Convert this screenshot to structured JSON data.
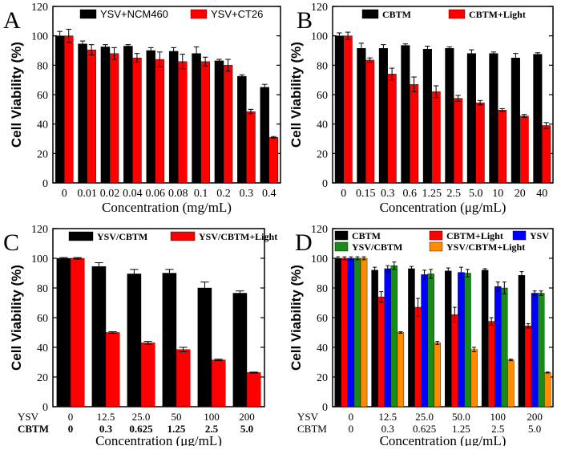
{
  "chart_data": [
    {
      "panel_letter": "A",
      "type": "bar",
      "categories": [
        "0",
        "0.01",
        "0.02",
        "0.04",
        "0.06",
        "0.08",
        "0.1",
        "0.2",
        "0.3",
        "0.4"
      ],
      "series": [
        {
          "name": "YSV+NCM460",
          "color": "#000000",
          "values": [
            100,
            94.5,
            92.5,
            93,
            90,
            89.5,
            88,
            83,
            72.5,
            65
          ],
          "errors": [
            3,
            2,
            1.5,
            1,
            2,
            2.5,
            4.5,
            1,
            1,
            2
          ]
        },
        {
          "name": "YSV+CT26",
          "color": "#ff0000",
          "values": [
            100,
            90.5,
            88,
            85,
            84,
            82.5,
            82.5,
            80,
            48.5,
            31
          ],
          "errors": [
            4.5,
            3.5,
            4,
            3,
            5,
            5,
            3,
            4,
            1.5,
            0.5
          ]
        }
      ],
      "xlabel": "Concentration (mg/mL)",
      "ylabel": "Cell Viability (%)",
      "ylim": [
        0,
        120
      ],
      "yticks": [
        "0",
        "20",
        "40",
        "60",
        "80",
        "100",
        "120"
      ],
      "legend": "top"
    },
    {
      "panel_letter": "B",
      "type": "bar",
      "categories": [
        "0",
        "0.15",
        "0.3",
        "0.6",
        "1.25",
        "2.5",
        "5.0",
        "10",
        "20",
        "40"
      ],
      "series": [
        {
          "name": "CBTM",
          "color": "#000000",
          "values": [
            100,
            91.5,
            91.5,
            93.5,
            91,
            91.5,
            88,
            88,
            85,
            87.5
          ],
          "errors": [
            2,
            3.5,
            2.5,
            1,
            2,
            1,
            2.5,
            1,
            3,
            1
          ]
        },
        {
          "name": "CBTM+Light",
          "color": "#ff0000",
          "values": [
            100,
            83.5,
            74,
            67,
            62,
            57.5,
            54.5,
            49.5,
            45.5,
            39
          ],
          "errors": [
            2.5,
            1.5,
            4,
            5,
            4,
            2,
            1.5,
            1,
            1,
            2
          ]
        }
      ],
      "xlabel": "Concentration (μg/mL)",
      "ylabel": "Cell Viability (%)",
      "ylim": [
        0,
        120
      ],
      "yticks": [
        "0",
        "20",
        "40",
        "60",
        "80",
        "100",
        "120"
      ],
      "legend": "top"
    },
    {
      "panel_letter": "C",
      "type": "bar",
      "categories": [
        "0",
        "12.5",
        "25.0",
        "50",
        "100",
        "200"
      ],
      "categories2": [
        "0",
        "0.3",
        "0.625",
        "1.25",
        "2.5",
        "5.0"
      ],
      "category_row_labels": [
        "YSV",
        "CBTM"
      ],
      "series": [
        {
          "name": "YSV/CBTM",
          "color": "#000000",
          "values": [
            100,
            94.5,
            89.5,
            90,
            80,
            76.5
          ],
          "errors": [
            0.5,
            2.5,
            3,
            2.5,
            4,
            1.5
          ]
        },
        {
          "name": "YSV/CBTM+Light",
          "color": "#ff0000",
          "values": [
            100,
            50,
            43,
            38.5,
            31.5,
            23
          ],
          "errors": [
            0.5,
            0.5,
            1,
            1.5,
            0.5,
            0.3
          ]
        }
      ],
      "xlabel": "Concentration (μg/mL)",
      "ylabel": "Cell Viability (%)",
      "ylim": [
        0,
        120
      ],
      "yticks": [
        "0",
        "20",
        "40",
        "60",
        "80",
        "100",
        "120"
      ],
      "legend": "top"
    },
    {
      "panel_letter": "D",
      "type": "bar",
      "categories": [
        "0",
        "12.5",
        "25.0",
        "50.0",
        "100",
        "200"
      ],
      "categories2": [
        "0",
        "0.3",
        "0.625",
        "1.25",
        "2.5",
        "5.0"
      ],
      "category_row_labels": [
        "YSV",
        "CBTM"
      ],
      "series": [
        {
          "name": "CBTM",
          "color": "#000000",
          "values": [
            100,
            92,
            93,
            91.5,
            92,
            88.5
          ],
          "errors": [
            1,
            2,
            1.5,
            2,
            1,
            2.5
          ]
        },
        {
          "name": "CBTM+Light",
          "color": "#ff0000",
          "values": [
            100,
            74,
            67,
            62,
            57.5,
            54.5
          ],
          "errors": [
            1,
            3.5,
            6,
            5,
            2.5,
            1.5
          ]
        },
        {
          "name": "YSV",
          "color": "#0000ff",
          "values": [
            100,
            93,
            89,
            90.5,
            81,
            76.5
          ],
          "errors": [
            1,
            2,
            3,
            3.5,
            3,
            1.5
          ]
        },
        {
          "name": "YSV/CBTM",
          "color": "#1a8a1a",
          "values": [
            100,
            95,
            89.5,
            90,
            80,
            76.5
          ],
          "errors": [
            1,
            2.5,
            3,
            2.5,
            4,
            1.5
          ]
        },
        {
          "name": "YSV/CBTM+Light",
          "color": "#ff8c00",
          "values": [
            100,
            50,
            43,
            38.5,
            31.5,
            23
          ],
          "errors": [
            1,
            0.5,
            1,
            1.5,
            0.5,
            0.3
          ]
        }
      ],
      "xlabel": "Concentration (μg/mL)",
      "ylabel": "Cell Viability (%)",
      "ylim": [
        0,
        120
      ],
      "yticks": [
        "0",
        "20",
        "40",
        "60",
        "80",
        "100",
        "120"
      ],
      "legend": "top"
    }
  ]
}
